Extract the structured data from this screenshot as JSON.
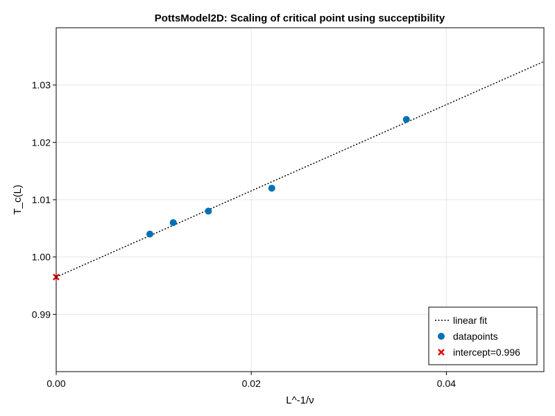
{
  "chart_data": {
    "type": "scatter",
    "title": "PottsModel2D: Scaling of critical point using succeptibility",
    "xlabel": "L^-1/ν",
    "ylabel": "T_c(L)",
    "xlim": [
      0.0,
      0.05
    ],
    "ylim": [
      0.98,
      1.04
    ],
    "xticks": [
      0.0,
      0.02,
      0.04
    ],
    "xtick_labels": [
      "0.00",
      "0.02",
      "0.04"
    ],
    "yticks": [
      0.99,
      1.0,
      1.01,
      1.02,
      1.03
    ],
    "ytick_labels": [
      "0.99",
      "1.00",
      "1.01",
      "1.02",
      "1.03"
    ],
    "grid": true,
    "legend_position": "bottom-right",
    "series": [
      {
        "name": "linear fit",
        "kind": "line",
        "style": "dotted",
        "color": "#000000",
        "x": [
          0.0,
          0.05
        ],
        "y": [
          0.9965,
          1.0341
        ]
      },
      {
        "name": "datapoints",
        "kind": "scatter",
        "marker": "circle",
        "color": "#0072b2",
        "x": [
          0.0096,
          0.012,
          0.0156,
          0.0221,
          0.0359
        ],
        "y": [
          1.004,
          1.006,
          1.008,
          1.012,
          1.024
        ]
      },
      {
        "name": "intercept=0.996",
        "kind": "scatter",
        "marker": "x",
        "color": "#e60000",
        "x": [
          0.0
        ],
        "y": [
          0.9965
        ]
      }
    ]
  }
}
